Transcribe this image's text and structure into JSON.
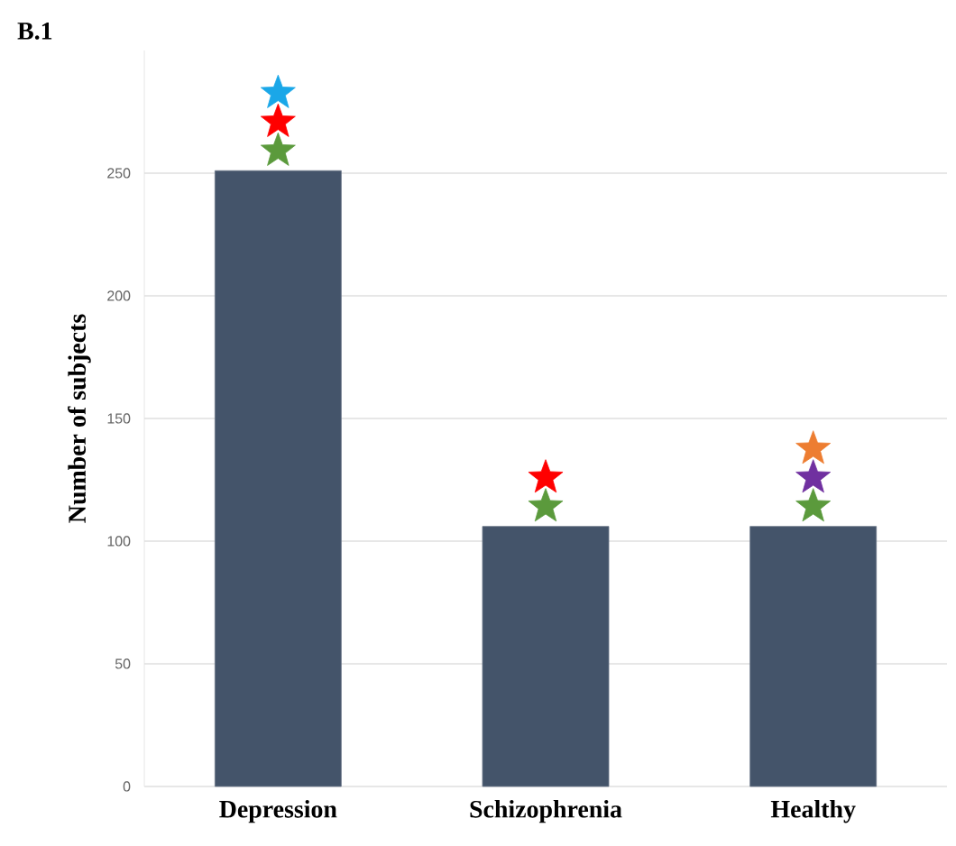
{
  "chart_data": {
    "type": "bar",
    "title": "B.1",
    "ylabel": "Number of subjects",
    "categories": [
      "Depression",
      "Schizophrenia",
      "Healthy"
    ],
    "values": [
      251,
      106,
      106
    ],
    "color": "#44546a",
    "ylim": [
      0,
      300
    ],
    "yticks": [
      0,
      50,
      100,
      150,
      200,
      250
    ],
    "grid": "y"
  }
}
